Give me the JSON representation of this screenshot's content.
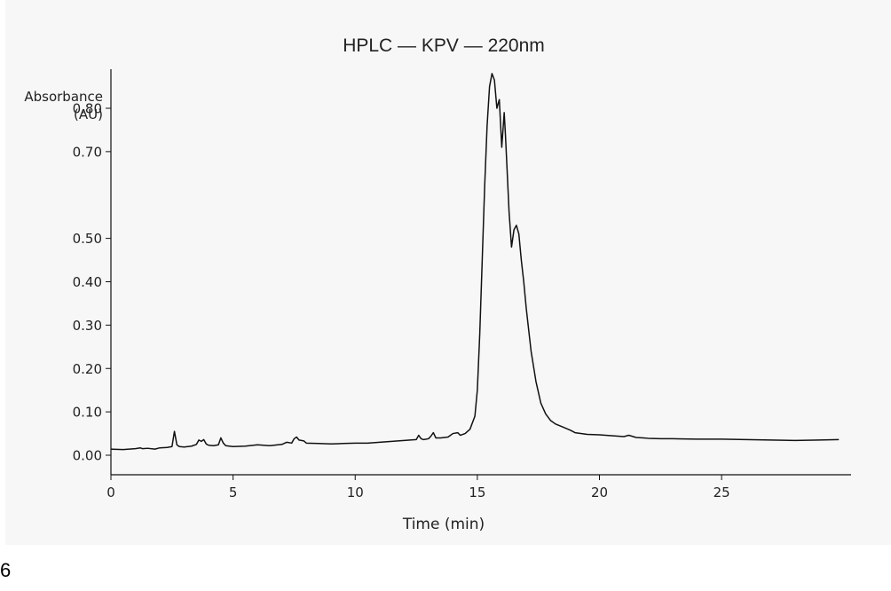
{
  "chart_data": {
    "type": "line",
    "title": "HPLC — KPV — 220nm",
    "xlabel": "Time (min)",
    "ylabel_line1": "Absorbance",
    "ylabel_line2": "(AU)",
    "xlim": [
      0,
      30.3
    ],
    "ylim": [
      -0.045,
      0.89
    ],
    "xticks": [
      0,
      5,
      10,
      15,
      20,
      25
    ],
    "xtick_labels": [
      "0",
      "5",
      "10",
      "15",
      "20",
      "25"
    ],
    "yticks": [
      0,
      0.1,
      0.2,
      0.3,
      0.4,
      0.5,
      0.7,
      0.8
    ],
    "ytick_labels": [
      "0.00",
      "0.10",
      "0.20",
      "0.30",
      "0.40",
      "0.50",
      "0.70",
      "0.80"
    ],
    "grid": false,
    "line_color": "#111111",
    "series": [
      {
        "x": [
          0,
          0.5,
          1.0,
          1.2,
          1.3,
          1.5,
          1.8,
          2.0,
          2.3,
          2.5,
          2.6,
          2.7,
          2.8,
          3.0,
          3.3,
          3.5,
          3.6,
          3.7,
          3.8,
          3.9,
          4.0,
          4.2,
          4.4,
          4.5,
          4.6,
          4.7,
          5.0,
          5.5,
          6.0,
          6.5,
          7.0,
          7.2,
          7.4,
          7.5,
          7.6,
          7.7,
          7.9,
          8.0,
          8.5,
          9.0,
          9.5,
          10.0,
          10.5,
          11.0,
          11.5,
          12.0,
          12.5,
          12.6,
          12.7,
          12.8,
          13.0,
          13.1,
          13.2,
          13.3,
          13.5,
          13.8,
          14.0,
          14.2,
          14.3,
          14.5,
          14.7,
          14.9,
          15.0,
          15.1,
          15.2,
          15.3,
          15.4,
          15.5,
          15.6,
          15.7,
          15.8,
          15.9,
          16.0,
          16.1,
          16.15,
          16.2,
          16.25,
          16.3,
          16.4,
          16.5,
          16.6,
          16.7,
          16.8,
          16.9,
          17.0,
          17.2,
          17.4,
          17.6,
          17.8,
          18.0,
          18.2,
          18.5,
          18.8,
          19.0,
          19.5,
          20.0,
          20.5,
          21.0,
          21.2,
          21.5,
          21.8,
          22.0,
          22.5,
          23.0,
          24.0,
          25.0,
          26.0,
          27.0,
          28.0,
          29.0,
          29.8
        ],
        "y": [
          0.014,
          0.013,
          0.015,
          0.017,
          0.015,
          0.016,
          0.014,
          0.017,
          0.018,
          0.02,
          0.055,
          0.024,
          0.02,
          0.019,
          0.021,
          0.025,
          0.035,
          0.032,
          0.036,
          0.026,
          0.023,
          0.022,
          0.024,
          0.04,
          0.028,
          0.022,
          0.02,
          0.021,
          0.024,
          0.022,
          0.025,
          0.03,
          0.028,
          0.038,
          0.042,
          0.035,
          0.033,
          0.028,
          0.027,
          0.026,
          0.027,
          0.028,
          0.028,
          0.03,
          0.032,
          0.034,
          0.036,
          0.046,
          0.038,
          0.036,
          0.038,
          0.044,
          0.052,
          0.04,
          0.04,
          0.042,
          0.05,
          0.052,
          0.046,
          0.05,
          0.06,
          0.09,
          0.15,
          0.28,
          0.45,
          0.62,
          0.76,
          0.85,
          0.88,
          0.865,
          0.8,
          0.82,
          0.71,
          0.79,
          0.74,
          0.68,
          0.62,
          0.56,
          0.48,
          0.52,
          0.53,
          0.51,
          0.45,
          0.4,
          0.34,
          0.24,
          0.17,
          0.12,
          0.095,
          0.08,
          0.072,
          0.065,
          0.058,
          0.052,
          0.048,
          0.047,
          0.045,
          0.043,
          0.046,
          0.041,
          0.04,
          0.039,
          0.038,
          0.038,
          0.037,
          0.037,
          0.036,
          0.035,
          0.034,
          0.035,
          0.036
        ]
      }
    ]
  },
  "corner_label": "6"
}
